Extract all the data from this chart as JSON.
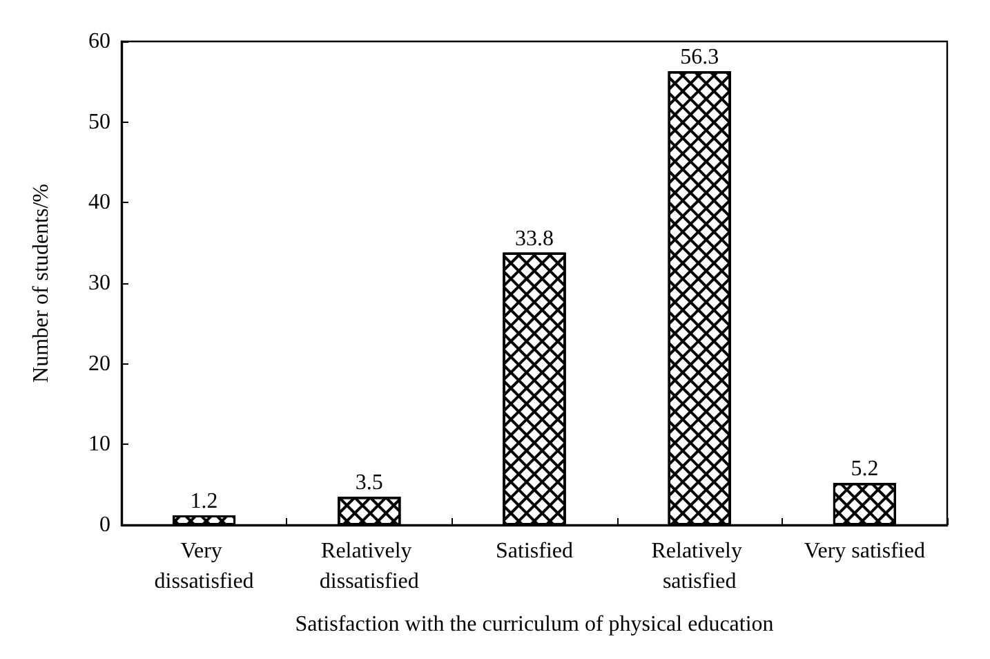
{
  "chart_data": {
    "type": "bar",
    "xlabel": "Satisfaction with the curriculum of physical education",
    "ylabel": "Number of students/%",
    "categories": [
      "Very dissatisfied",
      "Relatively dissatisfied",
      "Satisfied",
      "Relatively satisfied",
      "Very satisfied"
    ],
    "values": [
      1.2,
      3.5,
      33.8,
      56.3,
      5.2
    ],
    "color": "#ffffff",
    "ylim": [
      0,
      60
    ],
    "yticks": [
      0,
      10,
      20,
      30,
      40,
      50,
      60
    ],
    "grid": false,
    "data_labels": true
  }
}
